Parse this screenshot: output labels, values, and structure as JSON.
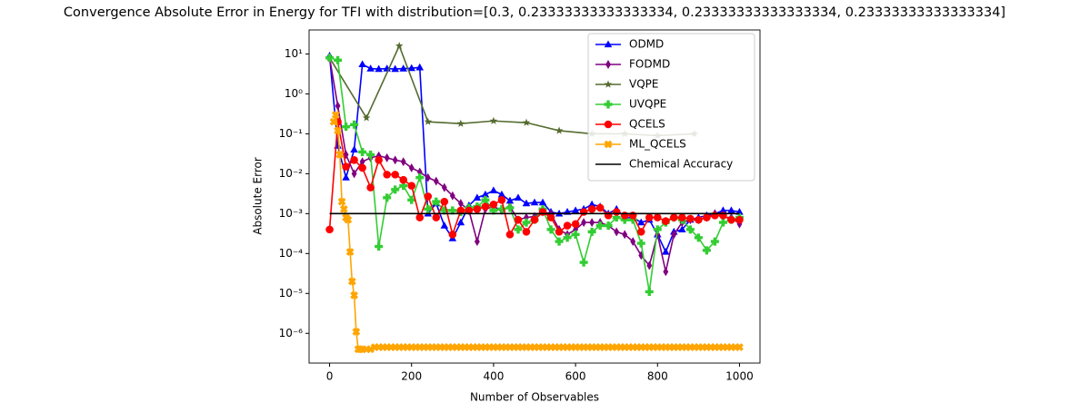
{
  "chart_data": {
    "type": "line",
    "title": "Convergence Absolute Error in Energy for TFI with distribution=[0.3, 0.23333333333333334, 0.23333333333333334, 0.23333333333333334]",
    "x_label": "Number of Observables",
    "y_label": "Absolute Error",
    "log_y": true,
    "legend": "upper right",
    "xlim": [
      -50,
      1050
    ],
    "xticks": [
      0,
      200,
      400,
      600,
      800,
      1000
    ],
    "ylim": [
      1.8e-07,
      40
    ],
    "yticks": [
      {
        "value": 1e-06,
        "label": "10⁻⁶"
      },
      {
        "value": 1e-05,
        "label": "10⁻⁵"
      },
      {
        "value": 0.0001,
        "label": "10⁻⁴"
      },
      {
        "value": 0.001,
        "label": "10⁻³"
      },
      {
        "value": 0.01,
        "label": "10⁻²"
      },
      {
        "value": 0.1,
        "label": "10⁻¹"
      },
      {
        "value": 1,
        "label": "10⁰"
      },
      {
        "value": 10,
        "label": "10¹"
      }
    ],
    "series": [
      {
        "name": "ODMD",
        "color": "#0000ff",
        "marker": "triangle",
        "x": [
          0,
          20,
          40,
          60,
          80,
          100,
          120,
          140,
          160,
          180,
          200,
          220,
          240,
          260,
          280,
          300,
          320,
          340,
          360,
          380,
          400,
          420,
          440,
          460,
          480,
          500,
          520,
          540,
          560,
          580,
          600,
          620,
          640,
          660,
          680,
          700,
          720,
          740,
          760,
          780,
          800,
          820,
          840,
          860,
          880,
          900,
          920,
          940,
          960,
          980,
          1000
        ],
        "values": [
          9,
          0.05,
          0.008,
          0.04,
          5.5,
          4.3,
          4.2,
          4.3,
          4.2,
          4.3,
          4.4,
          4.6,
          0.001,
          0.0018,
          0.0005,
          0.00024,
          0.0006,
          0.0016,
          0.0025,
          0.003,
          0.0038,
          0.003,
          0.0021,
          0.0025,
          0.0018,
          0.0019,
          0.0019,
          0.0011,
          0.001,
          0.0011,
          0.0012,
          0.0013,
          0.0017,
          0.0015,
          0.001,
          0.0013,
          0.0008,
          0.0008,
          0.0006,
          0.0007,
          0.0003,
          0.00011,
          0.00035,
          0.0004,
          0.0007,
          0.0008,
          0.0009,
          0.001,
          0.0012,
          0.0012,
          0.0011
        ]
      },
      {
        "name": "FODMD",
        "color": "#800080",
        "marker": "diamond",
        "x": [
          0,
          20,
          40,
          60,
          80,
          100,
          120,
          140,
          160,
          180,
          200,
          220,
          240,
          260,
          280,
          300,
          320,
          340,
          360,
          380,
          400,
          420,
          440,
          460,
          480,
          500,
          520,
          540,
          560,
          580,
          600,
          620,
          640,
          660,
          680,
          700,
          720,
          740,
          760,
          780,
          800,
          820,
          840,
          860,
          880,
          900,
          920,
          940,
          960,
          980,
          1000
        ],
        "values": [
          8,
          0.5,
          0.03,
          0.01,
          0.02,
          0.025,
          0.028,
          0.025,
          0.022,
          0.02,
          0.014,
          0.011,
          0.008,
          0.0065,
          0.0045,
          0.0028,
          0.0018,
          0.0012,
          0.0002,
          0.0013,
          0.0015,
          0.0012,
          0.0015,
          0.0007,
          0.0008,
          0.00085,
          0.0011,
          0.001,
          0.0004,
          0.0003,
          0.0004,
          0.0006,
          0.0006,
          0.0006,
          0.0005,
          0.00035,
          0.0003,
          0.0002,
          9e-05,
          5e-05,
          0.0003,
          3.5e-05,
          0.0003,
          0.0006,
          0.0007,
          0.0007,
          0.0008,
          0.001,
          0.0008,
          0.0008,
          0.00055
        ]
      },
      {
        "name": "VQPE",
        "color": "#556b2f",
        "marker": "star",
        "x": [
          0,
          90,
          170,
          240,
          320,
          400,
          480,
          560,
          640,
          720,
          800,
          890
        ],
        "values": [
          8,
          0.25,
          16,
          0.2,
          0.18,
          0.21,
          0.19,
          0.12,
          0.1,
          0.1,
          0.09,
          0.1
        ]
      },
      {
        "name": "UVQPE",
        "color": "#32cd32",
        "marker": "plus",
        "x": [
          0,
          20,
          40,
          60,
          80,
          100,
          120,
          140,
          160,
          180,
          200,
          220,
          240,
          260,
          280,
          300,
          320,
          340,
          360,
          380,
          400,
          420,
          440,
          460,
          480,
          500,
          520,
          540,
          560,
          580,
          600,
          620,
          640,
          660,
          680,
          700,
          720,
          740,
          760,
          780,
          800,
          820,
          840,
          860,
          880,
          900,
          920,
          940,
          960,
          980,
          1000
        ],
        "values": [
          8,
          7,
          0.15,
          0.17,
          0.035,
          0.03,
          0.00015,
          0.0025,
          0.004,
          0.005,
          0.0022,
          0.008,
          0.0013,
          0.002,
          0.0012,
          0.0012,
          0.0011,
          0.0014,
          0.0015,
          0.0022,
          0.0012,
          0.0013,
          0.0014,
          0.0004,
          0.0006,
          0.0007,
          0.0013,
          0.0004,
          0.0002,
          0.00025,
          0.0003,
          6e-05,
          0.00035,
          0.0005,
          0.0005,
          0.0008,
          0.0007,
          0.0007,
          0.00018,
          1.1e-05,
          0.0004,
          0.0006,
          0.0008,
          0.0007,
          0.0004,
          0.00025,
          0.00012,
          0.0002,
          0.0006,
          0.0007,
          0.0008
        ]
      },
      {
        "name": "QCELS",
        "color": "#ff0000",
        "marker": "circle",
        "x": [
          0,
          20,
          40,
          60,
          80,
          100,
          120,
          140,
          160,
          180,
          200,
          220,
          240,
          260,
          280,
          300,
          320,
          340,
          360,
          380,
          400,
          420,
          440,
          460,
          480,
          500,
          520,
          540,
          560,
          580,
          600,
          620,
          640,
          660,
          680,
          700,
          720,
          740,
          760,
          780,
          800,
          820,
          840,
          860,
          880,
          900,
          920,
          940,
          960,
          980,
          1000
        ],
        "values": [
          0.0004,
          0.2,
          0.015,
          0.022,
          0.014,
          0.0045,
          0.022,
          0.0095,
          0.0095,
          0.007,
          0.005,
          0.0008,
          0.0027,
          0.0008,
          0.002,
          0.0003,
          0.0012,
          0.0012,
          0.0013,
          0.0015,
          0.0017,
          0.0022,
          0.0003,
          0.0007,
          0.00035,
          0.0007,
          0.0011,
          0.0008,
          0.00035,
          0.0005,
          0.00055,
          0.0011,
          0.0013,
          0.0014,
          0.0009,
          0.0011,
          0.0009,
          0.0009,
          0.00035,
          0.0008,
          0.0008,
          0.00065,
          0.0008,
          0.0008,
          0.00075,
          0.0007,
          0.0008,
          0.0009,
          0.0009,
          0.0007,
          0.0007
        ]
      },
      {
        "name": "ML_QCELS",
        "color": "#ffa500",
        "marker": "x",
        "x": [
          10,
          15,
          20,
          25,
          30,
          35,
          40,
          45,
          50,
          55,
          60,
          65,
          70,
          75,
          80,
          90,
          100,
          110,
          120,
          130,
          140,
          150,
          160,
          170,
          180,
          190,
          200,
          210,
          220,
          230,
          240,
          250,
          260,
          270,
          280,
          290,
          300,
          310,
          320,
          330,
          340,
          350,
          360,
          370,
          380,
          390,
          400,
          410,
          420,
          430,
          440,
          450,
          460,
          470,
          480,
          490,
          500,
          510,
          520,
          530,
          540,
          550,
          560,
          570,
          580,
          590,
          600,
          610,
          620,
          630,
          640,
          650,
          660,
          670,
          680,
          690,
          700,
          710,
          720,
          730,
          740,
          750,
          760,
          770,
          780,
          790,
          800,
          810,
          820,
          830,
          840,
          850,
          860,
          870,
          880,
          890,
          900,
          910,
          920,
          930,
          940,
          950,
          960,
          970,
          980,
          990,
          1000
        ],
        "values": [
          0.2,
          0.3,
          0.12,
          0.03,
          0.002,
          0.0013,
          0.0008,
          0.0007,
          0.00011,
          2e-05,
          9e-06,
          1.1e-06,
          4e-07,
          4e-07,
          4e-07,
          4e-07,
          4e-07,
          4.5e-07,
          4.5e-07,
          4.5e-07,
          4.5e-07,
          4.5e-07,
          4.5e-07,
          4.5e-07,
          4.5e-07,
          4.5e-07,
          4.5e-07,
          4.5e-07,
          4.5e-07,
          4.5e-07,
          4.5e-07,
          4.5e-07,
          4.5e-07,
          4.5e-07,
          4.5e-07,
          4.5e-07,
          4.5e-07,
          4.5e-07,
          4.5e-07,
          4.5e-07,
          4.5e-07,
          4.5e-07,
          4.5e-07,
          4.5e-07,
          4.5e-07,
          4.5e-07,
          4.5e-07,
          4.5e-07,
          4.5e-07,
          4.5e-07,
          4.5e-07,
          4.5e-07,
          4.5e-07,
          4.5e-07,
          4.5e-07,
          4.5e-07,
          4.5e-07,
          4.5e-07,
          4.5e-07,
          4.5e-07,
          4.5e-07,
          4.5e-07,
          4.5e-07,
          4.5e-07,
          4.5e-07,
          4.5e-07,
          4.5e-07,
          4.5e-07,
          4.5e-07,
          4.5e-07,
          4.5e-07,
          4.5e-07,
          4.5e-07,
          4.5e-07,
          4.5e-07,
          4.5e-07,
          4.5e-07,
          4.5e-07,
          4.5e-07,
          4.5e-07,
          4.5e-07,
          4.5e-07,
          4.5e-07,
          4.5e-07,
          4.5e-07,
          4.5e-07,
          4.5e-07,
          4.5e-07,
          4.5e-07,
          4.5e-07,
          4.5e-07,
          4.5e-07,
          4.5e-07,
          4.5e-07,
          4.5e-07,
          4.5e-07,
          4.5e-07,
          4.5e-07,
          4.5e-07,
          4.5e-07,
          4.5e-07,
          4.5e-07,
          4.5e-07,
          4.5e-07,
          4.5e-07,
          4.5e-07,
          4.5e-07
        ]
      },
      {
        "name": "Chemical Accuracy",
        "color": "#000000",
        "marker": "none",
        "x": [
          0,
          1000
        ],
        "values": [
          0.001,
          0.001
        ]
      }
    ]
  }
}
